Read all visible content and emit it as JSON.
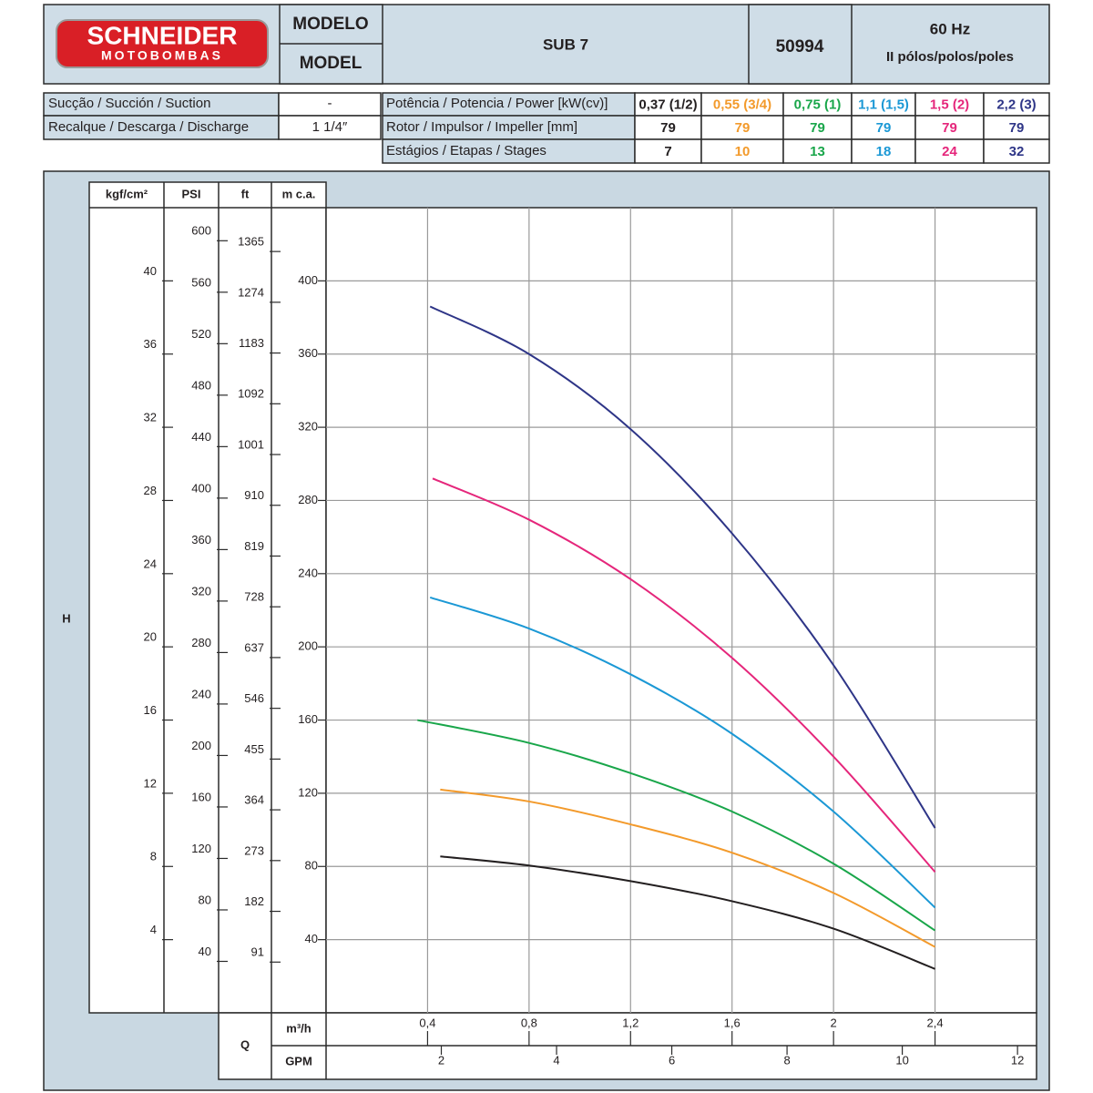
{
  "header": {
    "brand": "SCHNEIDER",
    "brand_sub": "MOTOBOMBAS",
    "model_label_pt": "MODELO",
    "model_label_en": "MODEL",
    "model": "SUB 7",
    "code": "50994",
    "frequency": "60 Hz",
    "poles": "II pólos/polos/poles"
  },
  "specs": {
    "suction_label": "Sucção / Succión / Suction",
    "suction": "-",
    "discharge_label": "Recalque / Descarga / Discharge",
    "discharge": "1 1/4″",
    "power_label": "Potência / Potencia / Power [kW(cv)]",
    "impeller_label": "Rotor / Impulsor / Impeller [mm]",
    "stages_label": "Estágios / Etapas / Stages"
  },
  "chart_data": {
    "type": "line",
    "y_label_side": "H",
    "x_label_side": "Q",
    "y_label": "m c.a.",
    "ylim": [
      0,
      440
    ],
    "yticks": [
      40,
      80,
      120,
      160,
      200,
      240,
      280,
      320,
      360,
      400
    ],
    "y_kgf": {
      "label": "kgf/cm²",
      "lim": [
        0,
        44
      ],
      "ticks": [
        4,
        8,
        12,
        16,
        20,
        24,
        28,
        32,
        36,
        40
      ]
    },
    "y_psi": {
      "label": "PSI",
      "lim": [
        0,
        625.7
      ],
      "ticks": [
        40,
        80,
        120,
        160,
        200,
        240,
        280,
        320,
        360,
        400,
        440,
        480,
        520,
        560,
        600
      ]
    },
    "y_ft": {
      "label": "ft",
      "lim": [
        0,
        1443.6
      ],
      "ticks": [
        91,
        182,
        273,
        364,
        455,
        546,
        637,
        728,
        819,
        910,
        1001,
        1092,
        1183,
        1274,
        1365
      ]
    },
    "x_label": "m³/h",
    "xlim": [
      0,
      2.8
    ],
    "xticks": [
      {
        "value": 0.4,
        "label": "0,4"
      },
      {
        "value": 0.8,
        "label": "0,8"
      },
      {
        "value": 1.2,
        "label": "1,2"
      },
      {
        "value": 1.6,
        "label": "1,6"
      },
      2,
      {
        "value": 2.4,
        "label": "2,4"
      }
    ],
    "x2_label": "GPM",
    "x2lim": [
      0,
      12.33
    ],
    "x2ticks": [
      2,
      4,
      6,
      8,
      10,
      12
    ],
    "grid": true,
    "series": [
      {
        "name": "0,37 (1/2)",
        "color": "#231f20",
        "impeller": 79,
        "stages": 7,
        "x": [
          0.45,
          0.8,
          1.2,
          1.6,
          2.0,
          2.4
        ],
        "values": [
          85.5,
          80.5,
          72,
          61,
          46,
          24
        ]
      },
      {
        "name": "0,55 (3/4)",
        "color": "#f39a2b",
        "impeller": 79,
        "stages": 10,
        "x": [
          0.45,
          0.8,
          1.2,
          1.6,
          2.0,
          2.4
        ],
        "values": [
          122,
          115.5,
          103,
          87.5,
          65.5,
          36
        ]
      },
      {
        "name": "0,75 (1)",
        "color": "#19a64a",
        "impeller": 79,
        "stages": 13,
        "x": [
          0.36,
          0.8,
          1.2,
          1.6,
          2.0,
          2.4
        ],
        "values": [
          160,
          147.5,
          131,
          110,
          81.5,
          45
        ]
      },
      {
        "name": "1,1 (1,5)",
        "color": "#1b98d5",
        "impeller": 79,
        "stages": 18,
        "x": [
          0.41,
          0.8,
          1.2,
          1.6,
          2.0,
          2.4
        ],
        "values": [
          227,
          210,
          185,
          152.5,
          110,
          57.5
        ]
      },
      {
        "name": "1,5 (2)",
        "color": "#e5267b",
        "impeller": 79,
        "stages": 24,
        "x": [
          0.42,
          0.8,
          1.2,
          1.6,
          2.0,
          2.4
        ],
        "values": [
          292,
          269.5,
          237,
          194,
          140,
          77
        ]
      },
      {
        "name": "2,2 (3)",
        "color": "#2e3587",
        "impeller": 79,
        "stages": 32,
        "x": [
          0.41,
          0.8,
          1.2,
          1.6,
          2.0,
          2.4
        ],
        "values": [
          386,
          360,
          319,
          262,
          190,
          101
        ]
      }
    ]
  }
}
